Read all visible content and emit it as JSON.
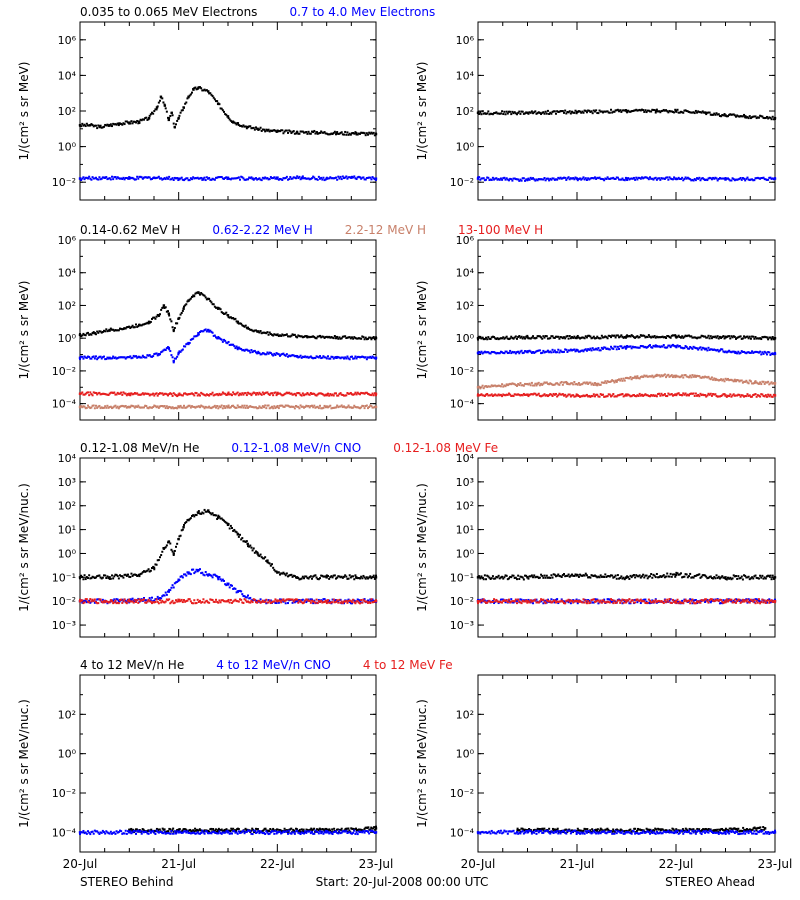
{
  "colors": {
    "black": "#000000",
    "blue": "#0000ff",
    "tan": "#c8806a",
    "red": "#e61e1e"
  },
  "chart_data": [
    {
      "type": "scatter",
      "panel": "row1-left",
      "legend": [
        {
          "label": "0.035 to 0.065 MeV Electrons",
          "color": "#000000"
        },
        {
          "label": "0.7 to 4.0 Mev Electrons",
          "color": "#0000ff"
        }
      ],
      "ylabel": "1/(cm² s sr MeV)",
      "yscale": "log",
      "ylim": [
        -3,
        7
      ],
      "yticks": [
        "10⁻²",
        "10⁰",
        "10²",
        "10⁴",
        "10⁶"
      ],
      "xlim": [
        0,
        3
      ],
      "series": [
        {
          "color": "#000000",
          "x": [
            0,
            0.1,
            0.2,
            0.3,
            0.4,
            0.5,
            0.6,
            0.7,
            0.78,
            0.82,
            0.86,
            0.9,
            0.93,
            0.96,
            1.0,
            1.05,
            1.1,
            1.15,
            1.2,
            1.3,
            1.4,
            1.5,
            1.55,
            1.6,
            1.7,
            1.8,
            1.9,
            2.0,
            2.2,
            2.4,
            2.6,
            2.8,
            3.0
          ],
          "y": [
            1.2,
            1.2,
            1.1,
            1.2,
            1.3,
            1.35,
            1.4,
            1.6,
            2.2,
            2.8,
            2.3,
            1.5,
            1.9,
            1.1,
            1.6,
            2.2,
            2.8,
            3.2,
            3.3,
            3.1,
            2.4,
            1.7,
            1.4,
            1.3,
            1.1,
            1.0,
            0.9,
            0.85,
            0.8,
            0.8,
            0.75,
            0.75,
            0.7
          ]
        },
        {
          "color": "#0000ff",
          "x": [
            0,
            0.25,
            0.5,
            0.75,
            1.0,
            1.25,
            1.5,
            1.75,
            2.0,
            2.25,
            2.5,
            2.75,
            3.0
          ],
          "y": [
            -1.8,
            -1.75,
            -1.8,
            -1.75,
            -1.8,
            -1.8,
            -1.75,
            -1.8,
            -1.8,
            -1.75,
            -1.8,
            -1.75,
            -1.8
          ]
        }
      ]
    },
    {
      "type": "scatter",
      "panel": "row1-right",
      "ylabel": "1/(cm² s sr MeV)",
      "yscale": "log",
      "ylim": [
        -3,
        7
      ],
      "yticks": [
        "10⁻²",
        "10⁰",
        "10²",
        "10⁴",
        "10⁶"
      ],
      "xlim": [
        0,
        3
      ],
      "series": [
        {
          "color": "#000000",
          "x": [
            0,
            0.5,
            1.0,
            1.5,
            1.8,
            2.0,
            2.3,
            2.5,
            2.7,
            3.0
          ],
          "y": [
            1.9,
            1.9,
            1.95,
            2.0,
            2.0,
            2.0,
            1.9,
            1.75,
            1.7,
            1.6
          ]
        },
        {
          "color": "#0000ff",
          "x": [
            0,
            0.5,
            1.0,
            1.5,
            2.0,
            2.5,
            3.0
          ],
          "y": [
            -1.8,
            -1.85,
            -1.8,
            -1.8,
            -1.8,
            -1.85,
            -1.8
          ]
        }
      ]
    },
    {
      "type": "scatter",
      "panel": "row2-left",
      "legend": [
        {
          "label": "0.14-0.62 MeV H",
          "color": "#000000"
        },
        {
          "label": "0.62-2.22 MeV H",
          "color": "#0000ff"
        },
        {
          "label": "2.2-12 MeV H",
          "color": "#c8806a"
        },
        {
          "label": "13-100 MeV H",
          "color": "#e61e1e"
        }
      ],
      "ylabel": "1/(cm² s sr MeV)",
      "yscale": "log",
      "ylim": [
        -5,
        6
      ],
      "yticks": [
        "10⁻⁴",
        "10⁻²",
        "10⁰",
        "10²",
        "10⁴",
        "10⁶"
      ],
      "xlim": [
        0,
        3
      ],
      "series": [
        {
          "color": "#000000",
          "x": [
            0,
            0.15,
            0.3,
            0.45,
            0.6,
            0.7,
            0.8,
            0.85,
            0.9,
            0.95,
            1.0,
            1.05,
            1.1,
            1.15,
            1.2,
            1.3,
            1.4,
            1.5,
            1.6,
            1.7,
            1.8,
            2.0,
            2.3,
            2.6,
            3.0
          ],
          "y": [
            0.2,
            0.3,
            0.5,
            0.6,
            0.8,
            1.0,
            1.4,
            2.0,
            1.5,
            0.5,
            1.2,
            1.8,
            2.3,
            2.6,
            2.8,
            2.4,
            1.8,
            1.4,
            1.0,
            0.6,
            0.4,
            0.2,
            0.1,
            0.05,
            0.0
          ]
        },
        {
          "color": "#0000ff",
          "x": [
            0,
            0.3,
            0.6,
            0.8,
            0.9,
            0.95,
            1.0,
            1.1,
            1.2,
            1.3,
            1.4,
            1.6,
            1.8,
            2.2,
            2.6,
            3.0
          ],
          "y": [
            -1.2,
            -1.2,
            -1.15,
            -1.0,
            -0.6,
            -1.4,
            -0.9,
            -0.3,
            0.3,
            0.5,
            0.0,
            -0.6,
            -0.9,
            -1.1,
            -1.2,
            -1.2
          ]
        },
        {
          "color": "#c8806a",
          "x": [
            0,
            0.5,
            1.0,
            1.5,
            2.0,
            2.5,
            3.0
          ],
          "y": [
            -4.2,
            -4.2,
            -4.2,
            -4.2,
            -4.2,
            -4.2,
            -4.2
          ]
        },
        {
          "color": "#e61e1e",
          "x": [
            0,
            0.5,
            1.0,
            1.5,
            2.0,
            2.5,
            3.0
          ],
          "y": [
            -3.4,
            -3.4,
            -3.45,
            -3.4,
            -3.4,
            -3.45,
            -3.4
          ]
        }
      ]
    },
    {
      "type": "scatter",
      "panel": "row2-right",
      "ylabel": "1/(cm² s sr MeV)",
      "yscale": "log",
      "ylim": [
        -5,
        6
      ],
      "yticks": [
        "10⁻⁴",
        "10⁻²",
        "10⁰",
        "10²",
        "10⁴",
        "10⁶"
      ],
      "xlim": [
        0,
        3
      ],
      "series": [
        {
          "color": "#000000",
          "x": [
            0,
            0.5,
            1.0,
            1.5,
            2.0,
            2.5,
            3.0
          ],
          "y": [
            0.0,
            0.05,
            0.05,
            0.1,
            0.1,
            0.05,
            0.0
          ]
        },
        {
          "color": "#0000ff",
          "x": [
            0,
            0.5,
            1.0,
            1.5,
            1.8,
            2.0,
            2.3,
            2.6,
            3.0
          ],
          "y": [
            -0.9,
            -0.85,
            -0.75,
            -0.55,
            -0.5,
            -0.5,
            -0.65,
            -0.85,
            -0.95
          ]
        },
        {
          "color": "#c8806a",
          "x": [
            0,
            0.3,
            0.6,
            0.9,
            1.2,
            1.4,
            1.6,
            1.8,
            2.0,
            2.2,
            2.4,
            2.6,
            2.8,
            3.0
          ],
          "y": [
            -3.0,
            -2.85,
            -2.8,
            -2.75,
            -2.8,
            -2.6,
            -2.4,
            -2.3,
            -2.3,
            -2.35,
            -2.5,
            -2.6,
            -2.7,
            -2.75
          ]
        },
        {
          "color": "#e61e1e",
          "x": [
            0,
            0.5,
            1.0,
            1.5,
            2.0,
            2.5,
            3.0
          ],
          "y": [
            -3.5,
            -3.45,
            -3.5,
            -3.5,
            -3.45,
            -3.5,
            -3.5
          ]
        }
      ]
    },
    {
      "type": "scatter",
      "panel": "row3-left",
      "legend": [
        {
          "label": "0.12-1.08 MeV/n He",
          "color": "#000000"
        },
        {
          "label": "0.12-1.08 MeV/n CNO",
          "color": "#0000ff"
        },
        {
          "label": "0.12-1.08 MeV Fe",
          "color": "#e61e1e"
        }
      ],
      "ylabel": "1/(cm² s sr MeV/nuc.)",
      "yscale": "log",
      "ylim": [
        -3.5,
        4
      ],
      "yticks": [
        "10⁻³",
        "10⁻²",
        "10⁻¹",
        "10⁰",
        "10¹",
        "10²",
        "10³",
        "10⁴"
      ],
      "xlim": [
        0,
        3
      ],
      "series": [
        {
          "color": "#000000",
          "x": [
            0,
            0.3,
            0.6,
            0.75,
            0.85,
            0.9,
            0.95,
            1.0,
            1.05,
            1.1,
            1.2,
            1.3,
            1.4,
            1.5,
            1.6,
            1.7,
            1.8,
            1.9,
            2.0,
            2.2,
            2.5,
            2.8,
            3.0
          ],
          "y": [
            -1.0,
            -1.0,
            -0.9,
            -0.6,
            0.2,
            0.5,
            0.0,
            0.6,
            1.1,
            1.4,
            1.7,
            1.8,
            1.5,
            1.2,
            0.8,
            0.4,
            0.0,
            -0.3,
            -0.8,
            -1.0,
            -1.0,
            -1.0,
            -1.0
          ]
        },
        {
          "color": "#0000ff",
          "x": [
            0,
            0.4,
            0.8,
            0.9,
            1.0,
            1.1,
            1.2,
            1.3,
            1.4,
            1.5,
            1.6,
            1.8,
            2.2,
            2.6,
            3.0
          ],
          "y": [
            -2.0,
            -2.0,
            -1.9,
            -1.6,
            -1.1,
            -0.8,
            -0.7,
            -0.9,
            -1.0,
            -1.3,
            -1.6,
            -2.0,
            -2.0,
            -2.0,
            -2.0
          ]
        },
        {
          "color": "#e61e1e",
          "x": [
            0,
            0.5,
            1.0,
            1.5,
            2.0,
            2.5,
            3.0
          ],
          "y": [
            -2.0,
            -2.0,
            -2.0,
            -2.0,
            -2.0,
            -2.0,
            -2.0
          ]
        }
      ]
    },
    {
      "type": "scatter",
      "panel": "row3-right",
      "ylabel": "1/(cm² s sr MeV/nuc.)",
      "yscale": "log",
      "ylim": [
        -3.5,
        4
      ],
      "yticks": [
        "10⁻³",
        "10⁻²",
        "10⁻¹",
        "10⁰",
        "10¹",
        "10²",
        "10³",
        "10⁴"
      ],
      "xlim": [
        0,
        3
      ],
      "series": [
        {
          "color": "#000000",
          "x": [
            0,
            0.5,
            1.0,
            1.5,
            2.0,
            2.5,
            3.0
          ],
          "y": [
            -1.0,
            -1.0,
            -0.9,
            -1.0,
            -0.9,
            -1.0,
            -1.0
          ]
        },
        {
          "color": "#0000ff",
          "x": [
            0,
            0.5,
            1.0,
            1.5,
            2.0,
            2.5,
            3.0
          ],
          "y": [
            -2.0,
            -2.0,
            -2.0,
            -2.0,
            -2.0,
            -2.0,
            -2.0
          ]
        },
        {
          "color": "#e61e1e",
          "x": [
            0,
            0.5,
            1.0,
            1.5,
            2.0,
            2.5,
            3.0
          ],
          "y": [
            -2.0,
            -2.0,
            -2.0,
            -2.0,
            -2.0,
            -2.0,
            -2.0
          ]
        }
      ]
    },
    {
      "type": "scatter",
      "panel": "row4-left",
      "legend": [
        {
          "label": "4 to 12 MeV/n He",
          "color": "#000000"
        },
        {
          "label": "4 to 12 MeV/n CNO",
          "color": "#0000ff"
        },
        {
          "label": "4 to 12 MeV Fe",
          "color": "#e61e1e"
        }
      ],
      "ylabel": "1/(cm² s sr MeV/nuc.)",
      "yscale": "log",
      "ylim": [
        -5,
        4
      ],
      "yticks": [
        "10⁻⁴",
        "10⁻²",
        "10⁰",
        "10²"
      ],
      "xlim": [
        0,
        3
      ],
      "series": [
        {
          "color": "#000000",
          "x": [
            0.5,
            1.0,
            1.4,
            2.1,
            2.7,
            3.0
          ],
          "y": [
            -3.9,
            -3.9,
            -3.9,
            -3.9,
            -3.9,
            -3.8
          ]
        },
        {
          "color": "#0000ff",
          "x": [
            0,
            0.5,
            1.0,
            1.5,
            2.0,
            2.5,
            3.0
          ],
          "y": [
            -4.0,
            -4.0,
            -4.0,
            -4.0,
            -4.0,
            -4.0,
            -4.0
          ]
        }
      ]
    },
    {
      "type": "scatter",
      "panel": "row4-right",
      "ylabel": "1/(cm² s sr MeV/nuc.)",
      "yscale": "log",
      "ylim": [
        -5,
        4
      ],
      "yticks": [
        "10⁻⁴",
        "10⁻²",
        "10⁰",
        "10²"
      ],
      "xlim": [
        0,
        3
      ],
      "xticks": [
        "20-Jul",
        "21-Jul",
        "22-Jul",
        "23-Jul"
      ],
      "series": [
        {
          "color": "#000000",
          "x": [
            0.4,
            0.8,
            1.2,
            1.9,
            2.5,
            2.9
          ],
          "y": [
            -3.9,
            -3.9,
            -3.9,
            -3.9,
            -3.9,
            -3.8
          ]
        },
        {
          "color": "#0000ff",
          "x": [
            0,
            0.5,
            1.0,
            1.5,
            2.0,
            2.5,
            3.0
          ],
          "y": [
            -4.0,
            -4.0,
            -4.0,
            -4.0,
            -4.0,
            -4.0,
            -4.0
          ]
        }
      ]
    }
  ],
  "xticks": [
    "20-Jul",
    "21-Jul",
    "22-Jul",
    "23-Jul"
  ],
  "footer": {
    "left": "STEREO Behind",
    "center": "Start: 20-Jul-2008 00:00 UTC",
    "right": "STEREO Ahead"
  }
}
